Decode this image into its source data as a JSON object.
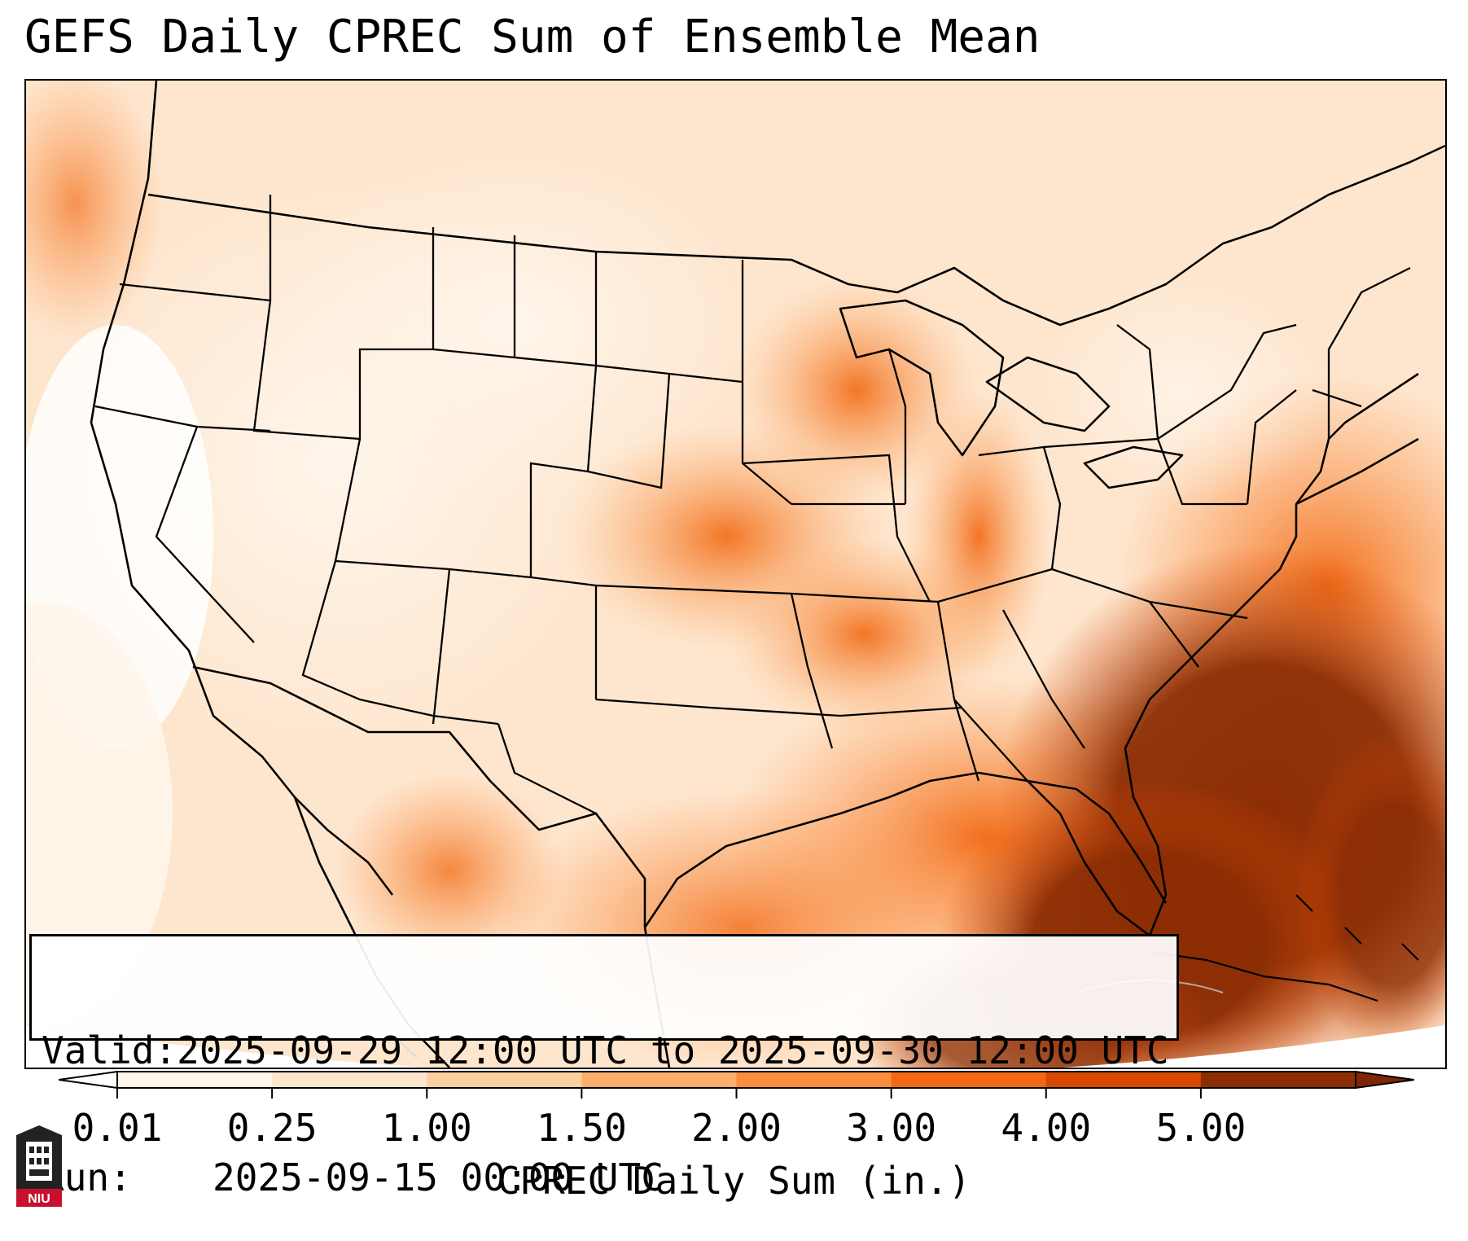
{
  "title": "GEFS Daily CPREC Sum of Ensemble Mean",
  "info_box": {
    "valid_label": "Valid:",
    "valid_value": "2025-09-29 12:00 UTC to 2025-09-30 12:00 UTC",
    "run_label": "Run:",
    "run_value": "2025-09-15 00:00 UTC"
  },
  "colorbar": {
    "title": "CPREC Daily Sum (in.)",
    "ticks": [
      "0.01",
      "0.25",
      "1.00",
      "1.50",
      "2.00",
      "3.00",
      "4.00",
      "5.00"
    ],
    "colors": [
      "#fff5eb",
      "#fee6ce",
      "#fdd0a2",
      "#fdae6b",
      "#fd8d3c",
      "#f16913",
      "#d94801",
      "#8c2d04"
    ],
    "under_color": "#ffffff",
    "over_color": "#7f2704"
  },
  "logo": {
    "text": "NIU",
    "colors": {
      "red": "#c8102e",
      "dark": "#222222"
    }
  },
  "map": {
    "features": [
      "us-state-borders",
      "coastlines",
      "country-borders"
    ]
  }
}
